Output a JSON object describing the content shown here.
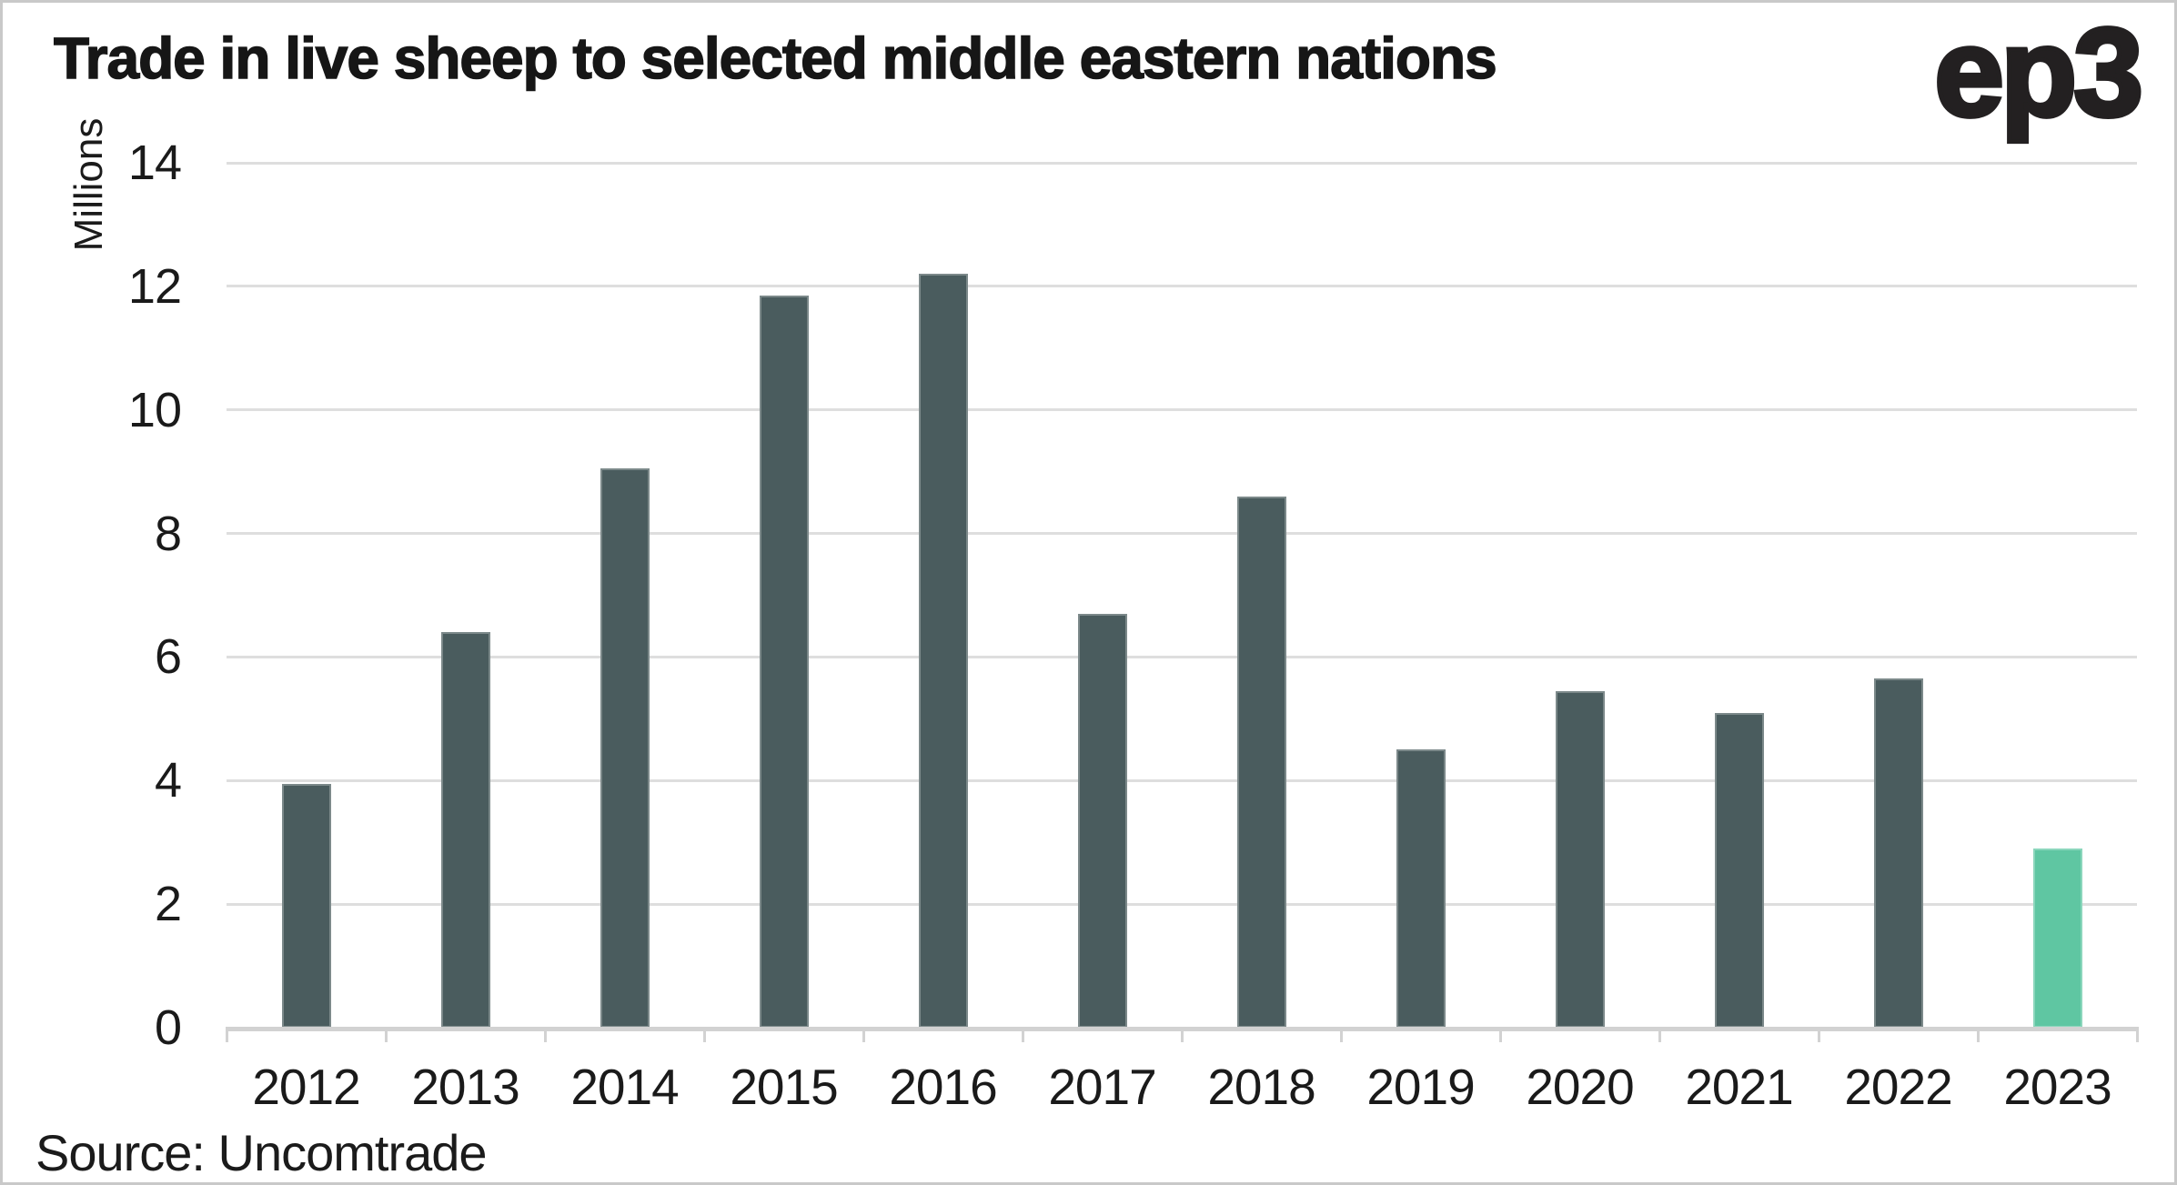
{
  "header": {
    "title": "Trade in live sheep to selected middle eastern nations",
    "logo": "ep3"
  },
  "chart_data": {
    "type": "bar",
    "title": "Trade in live sheep to selected middle eastern nations",
    "xlabel": "",
    "ylabel": "Millions",
    "categories": [
      "2012",
      "2013",
      "2014",
      "2015",
      "2016",
      "2017",
      "2018",
      "2019",
      "2020",
      "2021",
      "2022",
      "2023"
    ],
    "values": [
      3.95,
      6.4,
      9.05,
      11.85,
      12.2,
      6.7,
      8.6,
      4.5,
      5.45,
      5.1,
      5.65,
      2.9
    ],
    "ylim": [
      0,
      14
    ],
    "yticks": [
      0,
      2,
      4,
      6,
      8,
      10,
      12,
      14
    ],
    "grid": "horizontal",
    "legend": "none",
    "bar_color": "#4A5C5E",
    "highlight_color": "#5FC6A2",
    "highlight_index": 11
  },
  "footer": {
    "source": "Source: Uncomtrade"
  }
}
